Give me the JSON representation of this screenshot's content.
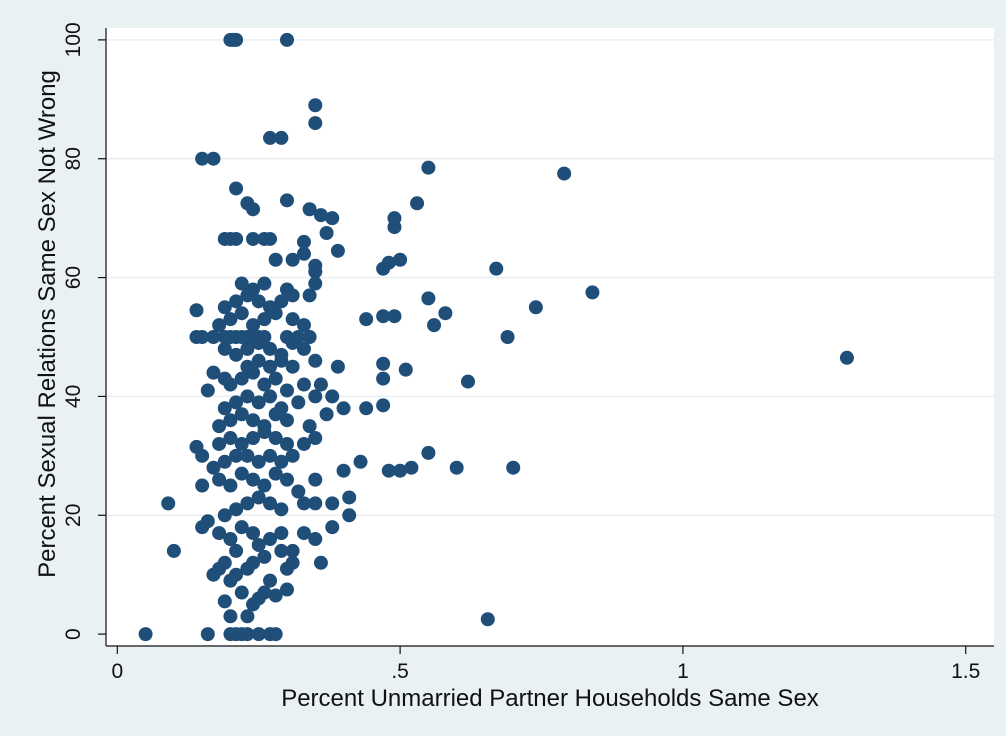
{
  "chart_data": {
    "type": "scatter",
    "xlabel": "Percent Unmarried Partner Households Same Sex",
    "ylabel": "Percent Sexual Relations Same Sex Not Wrong",
    "xlim": [
      -0.02,
      1.55
    ],
    "ylim": [
      -2,
      102
    ],
    "x_ticks": [
      0,
      0.5,
      1,
      1.5
    ],
    "x_tick_labels": [
      "0",
      ".5",
      "1",
      "1.5"
    ],
    "y_ticks": [
      0,
      20,
      40,
      60,
      80,
      100
    ],
    "y_tick_labels": [
      "0",
      "20",
      "40",
      "60",
      "80",
      "100"
    ],
    "grid": "horizontal",
    "legend": "none",
    "marker_color": "#1f4e79",
    "plot_background": "#ffffff",
    "page_background": "#eaf1f3",
    "points": [
      [
        0.05,
        0
      ],
      [
        0.16,
        0
      ],
      [
        0.2,
        0
      ],
      [
        0.21,
        0
      ],
      [
        0.22,
        0
      ],
      [
        0.23,
        0
      ],
      [
        0.25,
        0
      ],
      [
        0.27,
        0
      ],
      [
        0.28,
        0
      ],
      [
        0.655,
        2.5
      ],
      [
        0.2,
        3
      ],
      [
        0.23,
        3
      ],
      [
        0.19,
        5.5
      ],
      [
        0.24,
        5
      ],
      [
        0.25,
        6
      ],
      [
        0.26,
        7
      ],
      [
        0.28,
        6.5
      ],
      [
        0.3,
        7.5
      ],
      [
        0.22,
        7
      ],
      [
        0.17,
        10
      ],
      [
        0.18,
        11
      ],
      [
        0.19,
        12
      ],
      [
        0.2,
        9
      ],
      [
        0.21,
        10
      ],
      [
        0.23,
        11
      ],
      [
        0.24,
        12
      ],
      [
        0.26,
        13
      ],
      [
        0.27,
        9
      ],
      [
        0.3,
        11
      ],
      [
        0.31,
        12
      ],
      [
        0.36,
        12
      ],
      [
        0.1,
        14
      ],
      [
        0.21,
        14
      ],
      [
        0.25,
        15
      ],
      [
        0.29,
        14
      ],
      [
        0.31,
        14
      ],
      [
        0.15,
        18
      ],
      [
        0.16,
        19
      ],
      [
        0.18,
        17
      ],
      [
        0.2,
        16
      ],
      [
        0.22,
        18
      ],
      [
        0.24,
        17
      ],
      [
        0.27,
        16
      ],
      [
        0.29,
        17
      ],
      [
        0.33,
        17
      ],
      [
        0.35,
        16
      ],
      [
        0.38,
        18
      ],
      [
        0.41,
        20
      ],
      [
        0.09,
        22
      ],
      [
        0.19,
        20
      ],
      [
        0.21,
        21
      ],
      [
        0.23,
        22
      ],
      [
        0.25,
        23
      ],
      [
        0.27,
        22
      ],
      [
        0.29,
        21
      ],
      [
        0.33,
        22
      ],
      [
        0.35,
        22
      ],
      [
        0.38,
        22
      ],
      [
        0.41,
        23
      ],
      [
        0.15,
        25
      ],
      [
        0.18,
        26
      ],
      [
        0.2,
        25
      ],
      [
        0.22,
        27
      ],
      [
        0.24,
        26
      ],
      [
        0.26,
        25
      ],
      [
        0.28,
        27
      ],
      [
        0.3,
        26
      ],
      [
        0.32,
        24
      ],
      [
        0.35,
        26
      ],
      [
        0.4,
        27.5
      ],
      [
        0.43,
        29
      ],
      [
        0.48,
        27.5
      ],
      [
        0.5,
        27.5
      ],
      [
        0.52,
        28
      ],
      [
        0.6,
        28
      ],
      [
        0.7,
        28
      ],
      [
        0.17,
        28
      ],
      [
        0.19,
        29
      ],
      [
        0.21,
        30
      ],
      [
        0.23,
        30
      ],
      [
        0.25,
        29
      ],
      [
        0.27,
        30
      ],
      [
        0.29,
        29
      ],
      [
        0.31,
        30
      ],
      [
        0.15,
        30
      ],
      [
        0.55,
        30.5
      ],
      [
        0.14,
        31.5
      ],
      [
        0.18,
        32
      ],
      [
        0.2,
        33
      ],
      [
        0.22,
        32
      ],
      [
        0.24,
        33
      ],
      [
        0.26,
        34
      ],
      [
        0.28,
        33
      ],
      [
        0.3,
        32
      ],
      [
        0.33,
        32
      ],
      [
        0.35,
        33
      ],
      [
        0.18,
        35
      ],
      [
        0.2,
        36
      ],
      [
        0.22,
        37
      ],
      [
        0.24,
        36
      ],
      [
        0.26,
        35
      ],
      [
        0.28,
        37
      ],
      [
        0.3,
        36
      ],
      [
        0.34,
        35
      ],
      [
        0.37,
        37
      ],
      [
        0.19,
        38
      ],
      [
        0.21,
        39
      ],
      [
        0.23,
        40
      ],
      [
        0.25,
        39
      ],
      [
        0.27,
        40
      ],
      [
        0.29,
        38
      ],
      [
        0.32,
        39
      ],
      [
        0.35,
        40
      ],
      [
        0.38,
        40
      ],
      [
        0.4,
        38
      ],
      [
        0.44,
        38
      ],
      [
        0.47,
        38.5
      ],
      [
        0.16,
        41
      ],
      [
        0.2,
        42
      ],
      [
        0.22,
        43
      ],
      [
        0.24,
        44
      ],
      [
        0.26,
        42
      ],
      [
        0.28,
        43
      ],
      [
        0.3,
        41
      ],
      [
        0.33,
        42
      ],
      [
        0.36,
        42
      ],
      [
        0.47,
        43
      ],
      [
        0.62,
        42.5
      ],
      [
        0.17,
        44
      ],
      [
        0.19,
        43
      ],
      [
        0.23,
        45
      ],
      [
        0.25,
        46
      ],
      [
        0.27,
        45
      ],
      [
        0.29,
        46
      ],
      [
        0.31,
        45
      ],
      [
        0.35,
        46
      ],
      [
        0.39,
        45
      ],
      [
        0.47,
        45.5
      ],
      [
        0.51,
        44.5
      ],
      [
        0.19,
        48
      ],
      [
        0.21,
        47
      ],
      [
        0.23,
        48
      ],
      [
        0.25,
        49
      ],
      [
        0.27,
        48
      ],
      [
        0.29,
        47
      ],
      [
        0.31,
        49
      ],
      [
        0.33,
        48
      ],
      [
        0.14,
        50
      ],
      [
        0.15,
        50
      ],
      [
        0.17,
        50
      ],
      [
        0.19,
        50
      ],
      [
        0.2,
        50
      ],
      [
        0.21,
        50
      ],
      [
        0.22,
        50
      ],
      [
        0.23,
        50
      ],
      [
        0.24,
        50
      ],
      [
        0.25,
        50
      ],
      [
        0.26,
        50
      ],
      [
        0.3,
        50
      ],
      [
        0.32,
        50
      ],
      [
        0.34,
        50
      ],
      [
        0.69,
        50
      ],
      [
        1.29,
        46.5
      ],
      [
        0.18,
        52
      ],
      [
        0.2,
        53
      ],
      [
        0.22,
        54
      ],
      [
        0.24,
        52
      ],
      [
        0.26,
        53
      ],
      [
        0.28,
        54
      ],
      [
        0.31,
        53
      ],
      [
        0.33,
        52
      ],
      [
        0.44,
        53
      ],
      [
        0.47,
        53.5
      ],
      [
        0.49,
        53.5
      ],
      [
        0.56,
        52
      ],
      [
        0.58,
        54
      ],
      [
        0.14,
        54.5
      ],
      [
        0.19,
        55
      ],
      [
        0.21,
        56
      ],
      [
        0.23,
        57
      ],
      [
        0.25,
        56
      ],
      [
        0.27,
        55
      ],
      [
        0.29,
        56
      ],
      [
        0.31,
        57
      ],
      [
        0.34,
        57
      ],
      [
        0.55,
        56.5
      ],
      [
        0.74,
        55
      ],
      [
        0.84,
        57.5
      ],
      [
        0.22,
        59
      ],
      [
        0.24,
        58
      ],
      [
        0.26,
        59
      ],
      [
        0.3,
        58
      ],
      [
        0.35,
        59
      ],
      [
        0.35,
        61
      ],
      [
        0.28,
        63
      ],
      [
        0.31,
        63
      ],
      [
        0.33,
        64
      ],
      [
        0.35,
        62
      ],
      [
        0.39,
        64.5
      ],
      [
        0.47,
        61.5
      ],
      [
        0.48,
        62.5
      ],
      [
        0.5,
        63
      ],
      [
        0.67,
        61.5
      ],
      [
        0.19,
        66.5
      ],
      [
        0.2,
        66.5
      ],
      [
        0.21,
        66.5
      ],
      [
        0.24,
        66.5
      ],
      [
        0.26,
        66.5
      ],
      [
        0.27,
        66.5
      ],
      [
        0.33,
        66
      ],
      [
        0.37,
        67.5
      ],
      [
        0.49,
        68.5
      ],
      [
        0.49,
        70
      ],
      [
        0.36,
        70.5
      ],
      [
        0.38,
        70
      ],
      [
        0.34,
        71.5
      ],
      [
        0.23,
        72.5
      ],
      [
        0.24,
        71.5
      ],
      [
        0.3,
        73
      ],
      [
        0.53,
        72.5
      ],
      [
        0.21,
        75
      ],
      [
        0.55,
        78.5
      ],
      [
        0.79,
        77.5
      ],
      [
        0.15,
        80
      ],
      [
        0.17,
        80
      ],
      [
        0.27,
        83.5
      ],
      [
        0.29,
        83.5
      ],
      [
        0.35,
        86
      ],
      [
        0.35,
        89
      ],
      [
        0.2,
        100
      ],
      [
        0.205,
        100
      ],
      [
        0.21,
        100
      ],
      [
        0.3,
        100
      ]
    ]
  }
}
